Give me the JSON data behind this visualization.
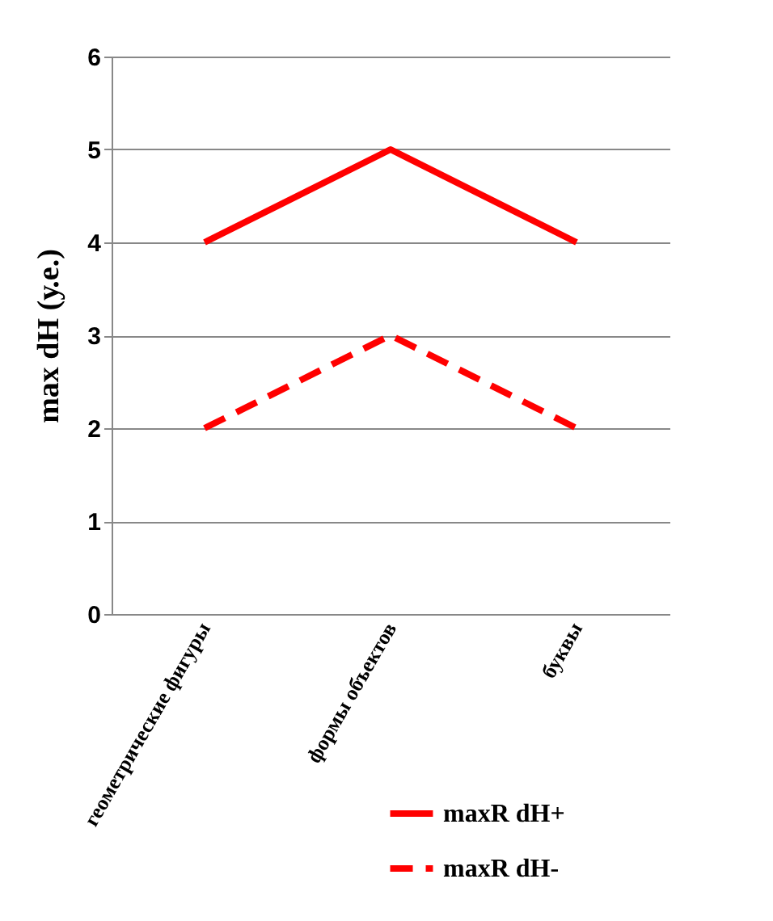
{
  "chart_data": {
    "type": "line",
    "ylabel": "max dH (у.е.)",
    "categories": [
      "геометрические фигуры",
      "формы объектов",
      "буквы"
    ],
    "series": [
      {
        "name": "maxR dH+",
        "color": "#ff0000",
        "values": [
          4,
          5,
          4
        ],
        "line_style": "solid"
      },
      {
        "name": "maxR dH-",
        "color": "#ff0000",
        "values": [
          2,
          3,
          2
        ],
        "line_style": "dashed"
      }
    ],
    "ylim": [
      0,
      6
    ],
    "yticks": [
      0,
      1,
      2,
      3,
      4,
      5,
      6
    ],
    "grid": "y",
    "legend": "bottom right",
    "marker": "none"
  }
}
